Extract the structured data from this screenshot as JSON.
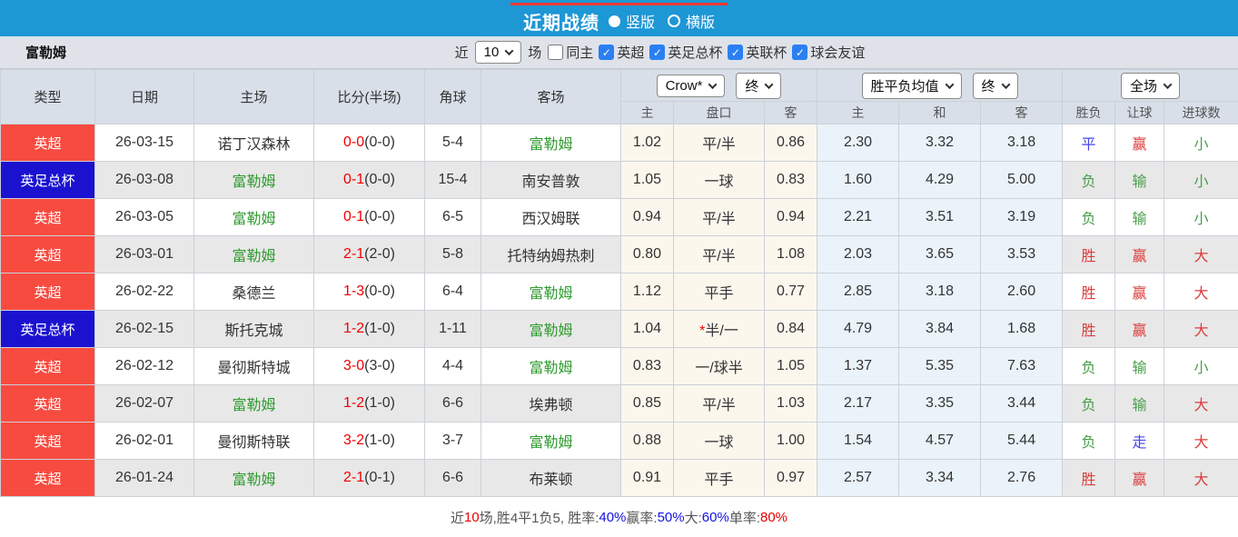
{
  "titlebar": {
    "title": "近期战绩",
    "radio_options": [
      {
        "label": "竖版",
        "selected": true
      },
      {
        "label": "横版",
        "selected": false
      }
    ]
  },
  "filterbar": {
    "team": "富勒姆",
    "near_label": "近",
    "match_count": "10",
    "count_suffix_label": "场",
    "checkboxes": [
      {
        "label": "同主",
        "checked": false
      },
      {
        "label": "英超",
        "checked": true
      },
      {
        "label": "英足总杯",
        "checked": true
      },
      {
        "label": "英联杯",
        "checked": true
      },
      {
        "label": "球会友谊",
        "checked": true
      }
    ]
  },
  "table": {
    "static_headers": [
      "类型",
      "日期",
      "主场",
      "比分(半场)",
      "角球",
      "客场"
    ],
    "odds_group": {
      "company_select": "Crow*",
      "time_select": "终",
      "subheaders": [
        "主",
        "盘口",
        "客"
      ]
    },
    "avg_group": {
      "metric_select": "胜平负均值",
      "time_select": "终",
      "subheaders": [
        "主",
        "和",
        "客"
      ]
    },
    "result_group": {
      "scope_select": "全场",
      "subheaders": [
        "胜负",
        "让球",
        "进球数"
      ]
    },
    "rows": [
      {
        "league": "英超",
        "league_color": "red",
        "date": "26-03-15",
        "home": "诺丁汉森林",
        "home_is_focus": false,
        "score": "0-0",
        "half_score": "(0-0)",
        "corners": "5-4",
        "away": "富勒姆",
        "away_is_focus": true,
        "odds": [
          "1.02",
          "平/半",
          "0.86"
        ],
        "handicap_star": false,
        "avg": [
          "2.30",
          "3.32",
          "3.18"
        ],
        "results": [
          {
            "text": "平",
            "color": "blue"
          },
          {
            "text": "赢",
            "color": "red"
          },
          {
            "text": "小",
            "color": "green"
          }
        ]
      },
      {
        "league": "英足总杯",
        "league_color": "blue",
        "date": "26-03-08",
        "home": "富勒姆",
        "home_is_focus": true,
        "score": "0-1",
        "half_score": "(0-0)",
        "corners": "15-4",
        "away": "南安普敦",
        "away_is_focus": false,
        "odds": [
          "1.05",
          "一球",
          "0.83"
        ],
        "handicap_star": false,
        "avg": [
          "1.60",
          "4.29",
          "5.00"
        ],
        "results": [
          {
            "text": "负",
            "color": "green"
          },
          {
            "text": "输",
            "color": "green"
          },
          {
            "text": "小",
            "color": "green"
          }
        ]
      },
      {
        "league": "英超",
        "league_color": "red",
        "date": "26-03-05",
        "home": "富勒姆",
        "home_is_focus": true,
        "score": "0-1",
        "half_score": "(0-0)",
        "corners": "6-5",
        "away": "西汉姆联",
        "away_is_focus": false,
        "odds": [
          "0.94",
          "平/半",
          "0.94"
        ],
        "handicap_star": false,
        "avg": [
          "2.21",
          "3.51",
          "3.19"
        ],
        "results": [
          {
            "text": "负",
            "color": "green"
          },
          {
            "text": "输",
            "color": "green"
          },
          {
            "text": "小",
            "color": "green"
          }
        ]
      },
      {
        "league": "英超",
        "league_color": "red",
        "date": "26-03-01",
        "home": "富勒姆",
        "home_is_focus": true,
        "score": "2-1",
        "half_score": "(2-0)",
        "corners": "5-8",
        "away": "托特纳姆热刺",
        "away_is_focus": false,
        "odds": [
          "0.80",
          "平/半",
          "1.08"
        ],
        "handicap_star": false,
        "avg": [
          "2.03",
          "3.65",
          "3.53"
        ],
        "results": [
          {
            "text": "胜",
            "color": "red"
          },
          {
            "text": "赢",
            "color": "red"
          },
          {
            "text": "大",
            "color": "red"
          }
        ]
      },
      {
        "league": "英超",
        "league_color": "red",
        "date": "26-02-22",
        "home": "桑德兰",
        "home_is_focus": false,
        "score": "1-3",
        "half_score": "(0-0)",
        "corners": "6-4",
        "away": "富勒姆",
        "away_is_focus": true,
        "odds": [
          "1.12",
          "平手",
          "0.77"
        ],
        "handicap_star": false,
        "avg": [
          "2.85",
          "3.18",
          "2.60"
        ],
        "results": [
          {
            "text": "胜",
            "color": "red"
          },
          {
            "text": "赢",
            "color": "red"
          },
          {
            "text": "大",
            "color": "red"
          }
        ]
      },
      {
        "league": "英足总杯",
        "league_color": "blue",
        "date": "26-02-15",
        "home": "斯托克城",
        "home_is_focus": false,
        "score": "1-2",
        "half_score": "(1-0)",
        "corners": "1-11",
        "away": "富勒姆",
        "away_is_focus": true,
        "odds": [
          "1.04",
          "半/一",
          "0.84"
        ],
        "handicap_star": true,
        "avg": [
          "4.79",
          "3.84",
          "1.68"
        ],
        "results": [
          {
            "text": "胜",
            "color": "red"
          },
          {
            "text": "赢",
            "color": "red"
          },
          {
            "text": "大",
            "color": "red"
          }
        ]
      },
      {
        "league": "英超",
        "league_color": "red",
        "date": "26-02-12",
        "home": "曼彻斯特城",
        "home_is_focus": false,
        "score": "3-0",
        "half_score": "(3-0)",
        "corners": "4-4",
        "away": "富勒姆",
        "away_is_focus": true,
        "odds": [
          "0.83",
          "一/球半",
          "1.05"
        ],
        "handicap_star": false,
        "avg": [
          "1.37",
          "5.35",
          "7.63"
        ],
        "results": [
          {
            "text": "负",
            "color": "green"
          },
          {
            "text": "输",
            "color": "green"
          },
          {
            "text": "小",
            "color": "green"
          }
        ]
      },
      {
        "league": "英超",
        "league_color": "red",
        "date": "26-02-07",
        "home": "富勒姆",
        "home_is_focus": true,
        "score": "1-2",
        "half_score": "(1-0)",
        "corners": "6-6",
        "away": "埃弗顿",
        "away_is_focus": false,
        "odds": [
          "0.85",
          "平/半",
          "1.03"
        ],
        "handicap_star": false,
        "avg": [
          "2.17",
          "3.35",
          "3.44"
        ],
        "results": [
          {
            "text": "负",
            "color": "green"
          },
          {
            "text": "输",
            "color": "green"
          },
          {
            "text": "大",
            "color": "red"
          }
        ]
      },
      {
        "league": "英超",
        "league_color": "red",
        "date": "26-02-01",
        "home": "曼彻斯特联",
        "home_is_focus": false,
        "score": "3-2",
        "half_score": "(1-0)",
        "corners": "3-7",
        "away": "富勒姆",
        "away_is_focus": true,
        "odds": [
          "0.88",
          "一球",
          "1.00"
        ],
        "handicap_star": false,
        "avg": [
          "1.54",
          "4.57",
          "5.44"
        ],
        "results": [
          {
            "text": "负",
            "color": "green"
          },
          {
            "text": "走",
            "color": "blue"
          },
          {
            "text": "大",
            "color": "red"
          }
        ]
      },
      {
        "league": "英超",
        "league_color": "red",
        "date": "26-01-24",
        "home": "富勒姆",
        "home_is_focus": true,
        "score": "2-1",
        "half_score": "(0-1)",
        "corners": "6-6",
        "away": "布莱顿",
        "away_is_focus": false,
        "odds": [
          "0.91",
          "平手",
          "0.97"
        ],
        "handicap_star": false,
        "avg": [
          "2.57",
          "3.34",
          "2.76"
        ],
        "results": [
          {
            "text": "胜",
            "color": "red"
          },
          {
            "text": "赢",
            "color": "red"
          },
          {
            "text": "大",
            "color": "red"
          }
        ]
      }
    ]
  },
  "summary": {
    "segments": [
      {
        "text": "近",
        "color": "dark"
      },
      {
        "text": "10",
        "color": "red"
      },
      {
        "text": "场,胜4平1负5, 胜率:",
        "color": "dark"
      },
      {
        "text": "40%",
        "color": "blue"
      },
      {
        "text": " 赢率:",
        "color": "dark"
      },
      {
        "text": "50%",
        "color": "blue"
      },
      {
        "text": " 大:",
        "color": "dark"
      },
      {
        "text": "60%",
        "color": "blue"
      },
      {
        "text": " 单率:",
        "color": "dark"
      },
      {
        "text": "80%",
        "color": "red"
      }
    ]
  },
  "colors": {
    "topbar_blue": "#1e97d5",
    "title_accent_red": "#f23a30",
    "filter_bg": "#dfe3e9",
    "header_bg": "#d8dfe9",
    "checkbox_blue": "#2b7ff2",
    "league_red": "#f84b40",
    "league_blue": "#1b12d0",
    "score_red": "#f20000",
    "focus_team_green": "#2f9b2f",
    "result_red": "#dd3b3b",
    "result_green": "#4b9e4b",
    "result_blue": "#4646e8",
    "odds_col_bg": "#fcf7ed",
    "avg_col_bg": "#eaf3f9",
    "alt_row_bg": "#e8e8e8",
    "summary_blue": "#1212e0",
    "summary_red": "#e60000"
  }
}
